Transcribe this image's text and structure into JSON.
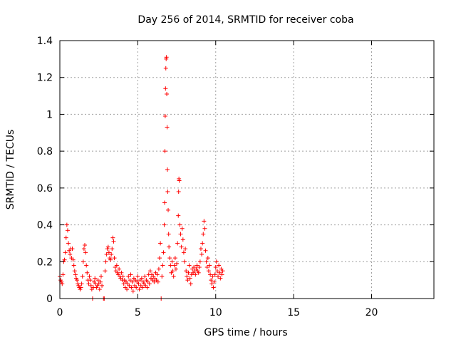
{
  "chart_data": {
    "type": "scatter",
    "title": "Day 256 of 2014, SRMTID for receiver coba",
    "xlabel": "GPS time / hours",
    "ylabel": "SRMTID / TECUs",
    "xlim": [
      0,
      24
    ],
    "ylim": [
      0,
      1.4
    ],
    "x_ticks": [
      0,
      5,
      10,
      15,
      20
    ],
    "x_tick_labels": [
      "0",
      "5",
      "10",
      "15",
      "20"
    ],
    "y_ticks": [
      0,
      0.2,
      0.4,
      0.6,
      0.8,
      1.0,
      1.2,
      1.4
    ],
    "y_tick_labels": [
      "0",
      "0.2",
      "0.4",
      "0.6",
      "0.8",
      "1",
      "1.2",
      "1.4"
    ],
    "grid": true,
    "marker": "+",
    "color": "#ff0000",
    "series": [
      {
        "name": "SRMTID",
        "points": [
          [
            0.0,
            0.12
          ],
          [
            0.05,
            0.1
          ],
          [
            0.1,
            0.09
          ],
          [
            0.15,
            0.08
          ],
          [
            0.2,
            0.13
          ],
          [
            0.25,
            0.2
          ],
          [
            0.3,
            0.21
          ],
          [
            0.35,
            0.25
          ],
          [
            0.4,
            0.33
          ],
          [
            0.45,
            0.4
          ],
          [
            0.5,
            0.37
          ],
          [
            0.55,
            0.3
          ],
          [
            0.6,
            0.26
          ],
          [
            0.65,
            0.24
          ],
          [
            0.7,
            0.27
          ],
          [
            0.75,
            0.22
          ],
          [
            0.8,
            0.27
          ],
          [
            0.85,
            0.21
          ],
          [
            0.9,
            0.18
          ],
          [
            0.95,
            0.15
          ],
          [
            1.0,
            0.13
          ],
          [
            1.05,
            0.11
          ],
          [
            1.1,
            0.1
          ],
          [
            1.15,
            0.08
          ],
          [
            1.2,
            0.07
          ],
          [
            1.25,
            0.06
          ],
          [
            1.3,
            0.05
          ],
          [
            1.35,
            0.06
          ],
          [
            1.4,
            0.08
          ],
          [
            1.45,
            0.12
          ],
          [
            1.5,
            0.2
          ],
          [
            1.55,
            0.27
          ],
          [
            1.6,
            0.29
          ],
          [
            1.65,
            0.25
          ],
          [
            1.7,
            0.18
          ],
          [
            1.75,
            0.14
          ],
          [
            1.8,
            0.1
          ],
          [
            1.85,
            0.08
          ],
          [
            1.9,
            0.12
          ],
          [
            1.95,
            0.1
          ],
          [
            2.0,
            0.07
          ],
          [
            2.05,
            0.05
          ],
          [
            2.1,
            0.0
          ],
          [
            2.15,
            0.06
          ],
          [
            2.2,
            0.09
          ],
          [
            2.25,
            0.11
          ],
          [
            2.3,
            0.08
          ],
          [
            2.35,
            0.06
          ],
          [
            2.4,
            0.07
          ],
          [
            2.45,
            0.1
          ],
          [
            2.5,
            0.08
          ],
          [
            2.55,
            0.05
          ],
          [
            2.6,
            0.09
          ],
          [
            2.65,
            0.12
          ],
          [
            2.7,
            0.07
          ],
          [
            2.8,
            0.0
          ],
          [
            2.85,
            0.0
          ],
          [
            2.9,
            0.15
          ],
          [
            2.95,
            0.2
          ],
          [
            3.0,
            0.24
          ],
          [
            3.05,
            0.27
          ],
          [
            3.1,
            0.28
          ],
          [
            3.15,
            0.25
          ],
          [
            3.2,
            0.22
          ],
          [
            3.25,
            0.21
          ],
          [
            3.3,
            0.24
          ],
          [
            3.35,
            0.27
          ],
          [
            3.4,
            0.33
          ],
          [
            3.45,
            0.31
          ],
          [
            3.5,
            0.22
          ],
          [
            3.55,
            0.17
          ],
          [
            3.6,
            0.15
          ],
          [
            3.65,
            0.18
          ],
          [
            3.7,
            0.14
          ],
          [
            3.75,
            0.13
          ],
          [
            3.8,
            0.16
          ],
          [
            3.85,
            0.12
          ],
          [
            3.9,
            0.11
          ],
          [
            3.95,
            0.14
          ],
          [
            4.0,
            0.1
          ],
          [
            4.05,
            0.12
          ],
          [
            4.1,
            0.08
          ],
          [
            4.15,
            0.1
          ],
          [
            4.2,
            0.06
          ],
          [
            4.25,
            0.09
          ],
          [
            4.3,
            0.05
          ],
          [
            4.35,
            0.08
          ],
          [
            4.4,
            0.12
          ],
          [
            4.45,
            0.07
          ],
          [
            4.5,
            0.1
          ],
          [
            4.55,
            0.13
          ],
          [
            4.6,
            0.06
          ],
          [
            4.65,
            0.09
          ],
          [
            4.7,
            0.04
          ],
          [
            4.75,
            0.11
          ],
          [
            4.8,
            0.07
          ],
          [
            4.85,
            0.1
          ],
          [
            4.9,
            0.06
          ],
          [
            4.95,
            0.09
          ],
          [
            5.0,
            0.12
          ],
          [
            5.05,
            0.08
          ],
          [
            5.1,
            0.05
          ],
          [
            5.15,
            0.1
          ],
          [
            5.2,
            0.07
          ],
          [
            5.25,
            0.11
          ],
          [
            5.3,
            0.06
          ],
          [
            5.35,
            0.09
          ],
          [
            5.4,
            0.08
          ],
          [
            5.45,
            0.12
          ],
          [
            5.5,
            0.07
          ],
          [
            5.55,
            0.1
          ],
          [
            5.6,
            0.06
          ],
          [
            5.65,
            0.09
          ],
          [
            5.7,
            0.13
          ],
          [
            5.75,
            0.08
          ],
          [
            5.8,
            0.15
          ],
          [
            5.85,
            0.11
          ],
          [
            5.9,
            0.13
          ],
          [
            5.95,
            0.1
          ],
          [
            6.0,
            0.12
          ],
          [
            6.05,
            0.09
          ],
          [
            6.1,
            0.11
          ],
          [
            6.15,
            0.14
          ],
          [
            6.2,
            0.1
          ],
          [
            6.25,
            0.13
          ],
          [
            6.3,
            0.09
          ],
          [
            6.35,
            0.16
          ],
          [
            6.4,
            0.22
          ],
          [
            6.45,
            0.3
          ],
          [
            6.5,
            0.0
          ],
          [
            6.55,
            0.12
          ],
          [
            6.6,
            0.18
          ],
          [
            6.65,
            0.25
          ],
          [
            6.7,
            0.4
          ],
          [
            6.72,
            0.52
          ],
          [
            6.74,
            0.8
          ],
          [
            6.76,
            0.99
          ],
          [
            6.78,
            1.14
          ],
          [
            6.8,
            1.25
          ],
          [
            6.82,
            1.3
          ],
          [
            6.84,
            1.31
          ],
          [
            6.86,
            1.11
          ],
          [
            6.88,
            0.93
          ],
          [
            6.9,
            0.7
          ],
          [
            6.92,
            0.58
          ],
          [
            6.95,
            0.48
          ],
          [
            6.98,
            0.35
          ],
          [
            7.0,
            0.28
          ],
          [
            7.05,
            0.22
          ],
          [
            7.1,
            0.18
          ],
          [
            7.15,
            0.14
          ],
          [
            7.2,
            0.2
          ],
          [
            7.25,
            0.15
          ],
          [
            7.3,
            0.12
          ],
          [
            7.35,
            0.18
          ],
          [
            7.4,
            0.22
          ],
          [
            7.45,
            0.16
          ],
          [
            7.5,
            0.19
          ],
          [
            7.55,
            0.3
          ],
          [
            7.6,
            0.45
          ],
          [
            7.62,
            0.58
          ],
          [
            7.64,
            0.65
          ],
          [
            7.66,
            0.64
          ],
          [
            7.7,
            0.4
          ],
          [
            7.75,
            0.35
          ],
          [
            7.8,
            0.28
          ],
          [
            7.85,
            0.38
          ],
          [
            7.9,
            0.32
          ],
          [
            7.95,
            0.25
          ],
          [
            8.0,
            0.2
          ],
          [
            8.05,
            0.27
          ],
          [
            8.1,
            0.15
          ],
          [
            8.15,
            0.12
          ],
          [
            8.2,
            0.1
          ],
          [
            8.25,
            0.14
          ],
          [
            8.3,
            0.18
          ],
          [
            8.35,
            0.11
          ],
          [
            8.4,
            0.08
          ],
          [
            8.45,
            0.13
          ],
          [
            8.5,
            0.16
          ],
          [
            8.55,
            0.14
          ],
          [
            8.6,
            0.17
          ],
          [
            8.65,
            0.15
          ],
          [
            8.7,
            0.13
          ],
          [
            8.75,
            0.16
          ],
          [
            8.8,
            0.18
          ],
          [
            8.85,
            0.15
          ],
          [
            8.9,
            0.14
          ],
          [
            8.95,
            0.17
          ],
          [
            9.0,
            0.2
          ],
          [
            9.05,
            0.27
          ],
          [
            9.1,
            0.24
          ],
          [
            9.15,
            0.3
          ],
          [
            9.2,
            0.35
          ],
          [
            9.25,
            0.42
          ],
          [
            9.3,
            0.38
          ],
          [
            9.35,
            0.26
          ],
          [
            9.4,
            0.2
          ],
          [
            9.45,
            0.17
          ],
          [
            9.5,
            0.22
          ],
          [
            9.55,
            0.15
          ],
          [
            9.6,
            0.18
          ],
          [
            9.65,
            0.13
          ],
          [
            9.7,
            0.1
          ],
          [
            9.75,
            0.08
          ],
          [
            9.8,
            0.12
          ],
          [
            9.85,
            0.06
          ],
          [
            9.9,
            0.09
          ],
          [
            9.95,
            0.13
          ],
          [
            10.0,
            0.17
          ],
          [
            10.05,
            0.2
          ],
          [
            10.1,
            0.15
          ],
          [
            10.15,
            0.12
          ],
          [
            10.2,
            0.18
          ],
          [
            10.25,
            0.14
          ],
          [
            10.3,
            0.11
          ],
          [
            10.35,
            0.16
          ],
          [
            10.4,
            0.13
          ],
          [
            10.45,
            0.15
          ]
        ]
      }
    ]
  }
}
